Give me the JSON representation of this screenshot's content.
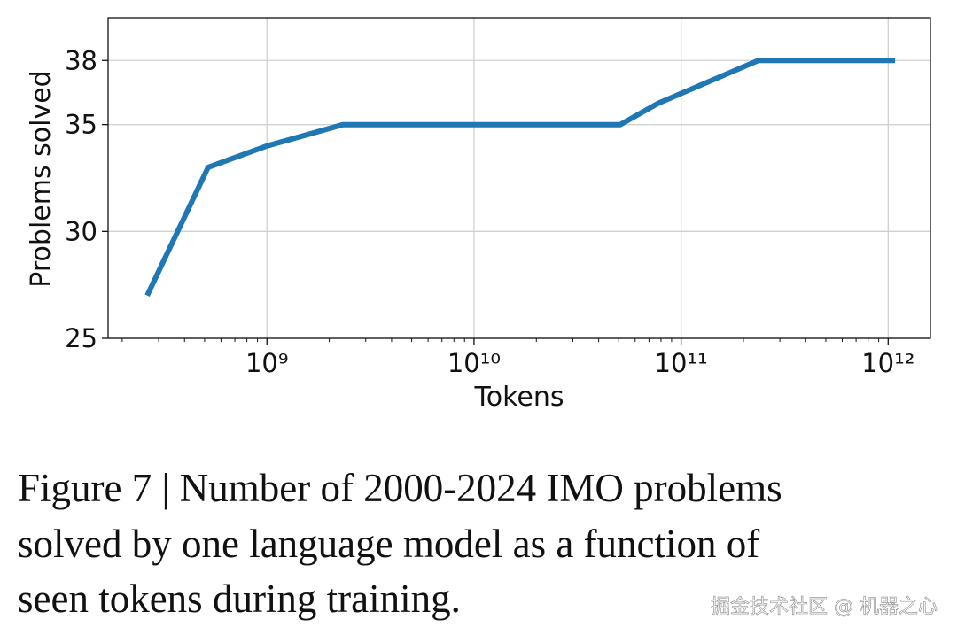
{
  "chart_data": {
    "type": "line",
    "x_label": "Tokens",
    "y_label": "Problems solved",
    "x": [
      264000000,
      520000000,
      1000000000,
      2330000000,
      50800000000,
      77700000000,
      236000000000,
      1080000000000
    ],
    "values": [
      27,
      33,
      34,
      35,
      35,
      36,
      38,
      38
    ],
    "color": "#1f77b4",
    "xscale": "log",
    "xlim": [
      171000000,
      1600000000000
    ],
    "xticks": [
      {
        "value": 1000000000,
        "label": "10⁹"
      },
      {
        "value": 10000000000,
        "label": "10¹⁰"
      },
      {
        "value": 100000000000,
        "label": "10¹¹"
      },
      {
        "value": 1000000000000,
        "label": "10¹²"
      }
    ],
    "ylim": [
      25,
      40
    ],
    "yticks": [
      25,
      30,
      35,
      38
    ],
    "grid": true
  },
  "caption": {
    "lines": [
      "Figure 7 | Number of 2000-2024 IMO problems",
      "solved by one language model as a function of",
      "seen tokens during training."
    ]
  },
  "watermark": "掘金技术社区 @ 机器之心"
}
